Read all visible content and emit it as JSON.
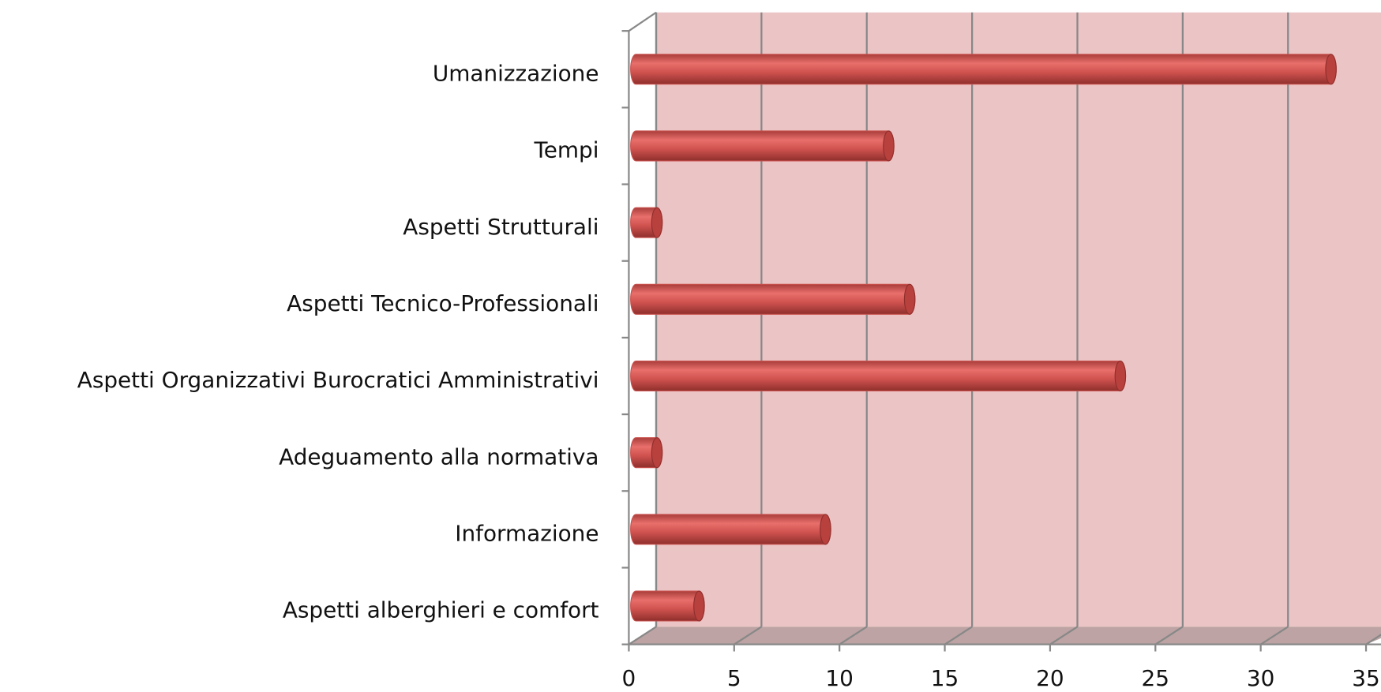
{
  "chart_data": {
    "type": "bar",
    "orientation": "horizontal",
    "categories": [
      "Umanizzazione",
      "Tempi",
      "Aspetti Strutturali",
      "Aspetti Tecnico-Professionali",
      "Aspetti Organizzativi Burocratici Amministrativi",
      "Adeguamento alla normativa",
      "Informazione",
      "Aspetti alberghieri e comfort"
    ],
    "values": [
      33,
      12,
      1,
      13,
      23,
      1,
      9,
      3
    ],
    "color": "#c9504d",
    "xlim": [
      0,
      35
    ],
    "xticks": [
      0,
      5,
      10,
      15,
      20,
      25,
      30,
      35
    ],
    "grid": true
  }
}
